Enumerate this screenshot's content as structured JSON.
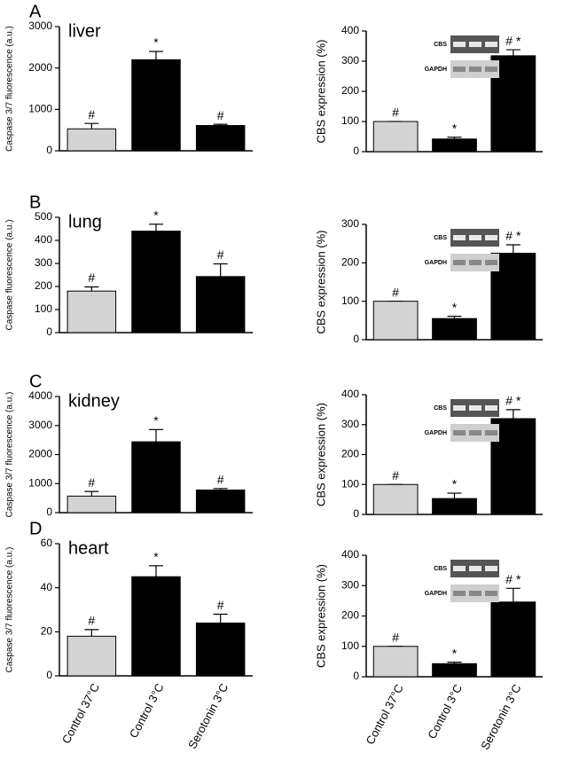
{
  "chart_data": [
    {
      "type": "bar",
      "panel": "A",
      "organ": "liver",
      "ylabel": "Caspase 3/7 fluorescence (a.u.)",
      "values": [
        530,
        2200,
        610
      ],
      "errors": [
        130,
        200,
        30
      ],
      "colors": [
        "#d3d3d3",
        "#000000",
        "#000000"
      ],
      "bar_labels": [
        "#",
        "*",
        "#"
      ],
      "ylim": [
        0,
        3000
      ],
      "yticks": [
        0,
        1000,
        2000,
        3000
      ]
    },
    {
      "type": "bar",
      "ylabel": "CBS expression (%)",
      "values": [
        100,
        42,
        318
      ],
      "errors": [
        0,
        6,
        20
      ],
      "colors": [
        "#d3d3d3",
        "#000000",
        "#000000"
      ],
      "bar_labels": [
        "#",
        "*",
        "# *"
      ],
      "ylim": [
        0,
        400
      ],
      "yticks": [
        0,
        100,
        200,
        300,
        400
      ],
      "blot_labels": [
        "CBS",
        "GAPDH"
      ]
    },
    {
      "type": "bar",
      "panel": "B",
      "organ": "lung",
      "ylabel": "Caspase fluorescence (a.u.)",
      "values": [
        180,
        440,
        243
      ],
      "errors": [
        18,
        30,
        55
      ],
      "colors": [
        "#d3d3d3",
        "#000000",
        "#000000"
      ],
      "bar_labels": [
        "#",
        "*",
        "#"
      ],
      "ylim": [
        0,
        500
      ],
      "yticks": [
        0,
        100,
        200,
        300,
        400,
        500
      ]
    },
    {
      "type": "bar",
      "ylabel": "CBS expression (%)",
      "values": [
        100,
        55,
        225
      ],
      "errors": [
        0,
        6,
        22
      ],
      "colors": [
        "#d3d3d3",
        "#000000",
        "#000000"
      ],
      "bar_labels": [
        "#",
        "*",
        "# *"
      ],
      "ylim": [
        0,
        300
      ],
      "yticks": [
        0,
        100,
        200,
        300
      ],
      "blot_labels": [
        "CBS",
        "GAPDH"
      ]
    },
    {
      "type": "bar",
      "panel": "C",
      "organ": "kidney",
      "ylabel": "Caspase 3/7 fluorescence (a.u.)",
      "values": [
        570,
        2440,
        780
      ],
      "errors": [
        160,
        420,
        50
      ],
      "colors": [
        "#d3d3d3",
        "#000000",
        "#000000"
      ],
      "bar_labels": [
        "#",
        "*",
        "#"
      ],
      "ylim": [
        0,
        4000
      ],
      "yticks": [
        0,
        1000,
        2000,
        3000,
        4000
      ]
    },
    {
      "type": "bar",
      "ylabel": "CBS expression (%)",
      "values": [
        100,
        53,
        320
      ],
      "errors": [
        0,
        18,
        30
      ],
      "colors": [
        "#d3d3d3",
        "#000000",
        "#000000"
      ],
      "bar_labels": [
        "#",
        "*",
        "# *"
      ],
      "ylim": [
        0,
        400
      ],
      "yticks": [
        0,
        100,
        200,
        300,
        400
      ],
      "blot_labels": [
        "CBS",
        "GAPDH"
      ]
    },
    {
      "type": "bar",
      "panel": "D",
      "organ": "heart",
      "ylabel": "Caspase 3/7 fluorescence (a.u.)",
      "categories": [
        "Control 37°C",
        "Control 3°C",
        "Serotonin 3°C"
      ],
      "values": [
        18,
        45,
        24
      ],
      "errors": [
        3,
        5,
        4
      ],
      "colors": [
        "#d3d3d3",
        "#000000",
        "#000000"
      ],
      "bar_labels": [
        "#",
        "*",
        "#"
      ],
      "ylim": [
        0,
        60
      ],
      "yticks": [
        0,
        20,
        40,
        60
      ]
    },
    {
      "type": "bar",
      "ylabel": "CBS expression (%)",
      "categories": [
        "Control 37°C",
        "Control 3°C",
        "Serotonin 3°C"
      ],
      "values": [
        100,
        43,
        246
      ],
      "errors": [
        0,
        5,
        45
      ],
      "colors": [
        "#d3d3d3",
        "#000000",
        "#000000"
      ],
      "bar_labels": [
        "#",
        "*",
        "# *"
      ],
      "ylim": [
        0,
        400
      ],
      "yticks": [
        0,
        100,
        200,
        300,
        400
      ],
      "blot_labels": [
        "CBS",
        "GAPDH"
      ]
    }
  ]
}
